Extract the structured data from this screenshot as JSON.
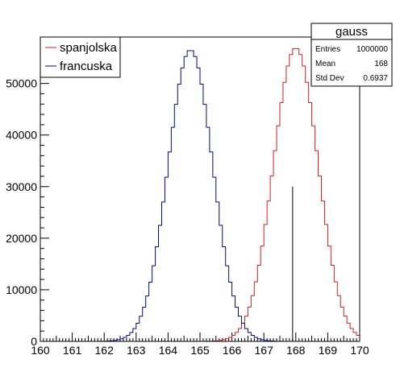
{
  "chart_data": {
    "type": "histogram",
    "xlim": [
      160,
      170
    ],
    "ylim": [
      0,
      59000
    ],
    "x_ticks": [
      160,
      161,
      162,
      163,
      164,
      165,
      166,
      167,
      168,
      169,
      170
    ],
    "y_ticks": [
      0,
      10000,
      20000,
      30000,
      40000,
      50000
    ],
    "bin_width": 0.1,
    "series": [
      {
        "name": "spanjolska",
        "color": "#d42020",
        "mean": 168.0,
        "sigma": 0.7,
        "peak": 56900
      },
      {
        "name": "francuska",
        "color": "#000a8c",
        "mean": 164.7,
        "sigma": 0.7,
        "peak": 56500
      }
    ],
    "marker_line": {
      "x": 167.9,
      "y": 30000,
      "color": "#000000"
    },
    "legend": {
      "position": "top-left",
      "items": [
        {
          "label": "spanjolska",
          "color": "#d42020"
        },
        {
          "label": "francuska",
          "color": "#000a8c"
        }
      ]
    },
    "stats_box": {
      "title": "gauss",
      "rows": [
        {
          "label": "Entries",
          "value": "1000000"
        },
        {
          "label": "Mean",
          "value": "168"
        },
        {
          "label": "Std Dev",
          "value": "0.6937"
        }
      ]
    }
  }
}
